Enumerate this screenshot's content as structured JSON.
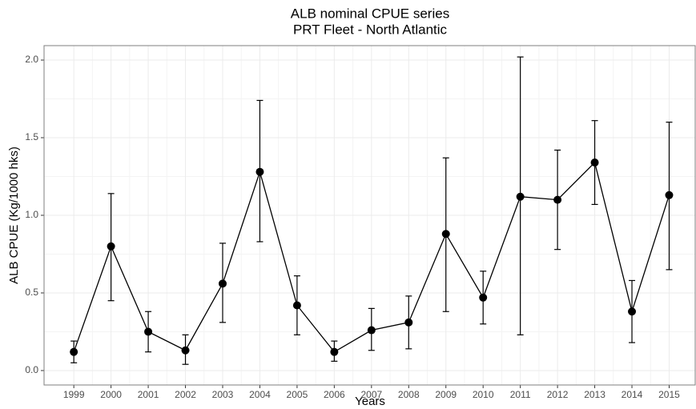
{
  "chart_data": {
    "type": "line",
    "title": "ALB nominal CPUE series",
    "subtitle": "PRT Fleet - North Atlantic",
    "x_label": "Years",
    "y_label": "ALB CPUE (Kg/1000 hks)",
    "x": [
      1999,
      2000,
      2001,
      2002,
      2003,
      2004,
      2005,
      2006,
      2007,
      2008,
      2009,
      2010,
      2011,
      2012,
      2013,
      2014,
      2015
    ],
    "series": [
      {
        "name": "CPUE",
        "color": "#000000",
        "values": [
          0.12,
          0.8,
          0.25,
          0.13,
          0.56,
          1.28,
          0.42,
          0.12,
          0.26,
          0.31,
          0.88,
          0.47,
          1.12,
          1.1,
          1.34,
          0.38,
          1.13
        ],
        "lower": [
          0.05,
          0.45,
          0.12,
          0.04,
          0.31,
          0.83,
          0.23,
          0.06,
          0.13,
          0.14,
          0.38,
          0.3,
          0.23,
          0.78,
          1.07,
          0.18,
          0.65
        ],
        "upper": [
          0.19,
          1.14,
          0.38,
          0.23,
          0.82,
          1.74,
          0.61,
          0.19,
          0.4,
          0.48,
          1.37,
          0.64,
          2.02,
          1.42,
          1.61,
          0.58,
          1.6
        ]
      }
    ],
    "xlim": [
      1998.2,
      2015.7
    ],
    "ylim": [
      -0.093,
      2.093
    ],
    "xticks": [
      1999,
      2000,
      2001,
      2002,
      2003,
      2004,
      2005,
      2006,
      2007,
      2008,
      2009,
      2010,
      2011,
      2012,
      2013,
      2014,
      2015
    ],
    "yticks": [
      {
        "value": 0,
        "label": "0.0"
      },
      0.5,
      {
        "value": 1,
        "label": "1.0"
      },
      1.5,
      {
        "value": 2,
        "label": "2.0"
      }
    ],
    "grid": true
  }
}
